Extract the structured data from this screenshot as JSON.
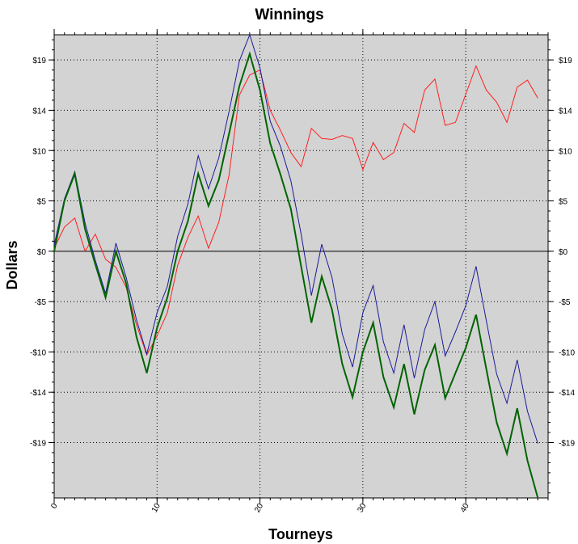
{
  "chart_data": {
    "type": "line",
    "title": "Winnings",
    "xlabel": "Tourneys",
    "ylabel": "Dollars",
    "xlim": [
      0,
      48
    ],
    "ylim": [
      -24.5,
      21.5
    ],
    "x_ticks": [
      0,
      10,
      20,
      30,
      40
    ],
    "x_tick_labels": [
      "0",
      "10",
      "20",
      "30",
      "40"
    ],
    "y_ticks": [
      19,
      14,
      10,
      5,
      0,
      -5,
      -10,
      -14,
      -19
    ],
    "y_tick_labels": [
      "$19",
      "$14",
      "$10",
      "$5",
      "$0",
      "-$5",
      "-$10",
      "-$14",
      "-$19"
    ],
    "grid": true,
    "legend": "none",
    "x": [
      0,
      1,
      2,
      3,
      4,
      5,
      6,
      7,
      8,
      9,
      10,
      11,
      12,
      13,
      14,
      15,
      16,
      17,
      18,
      19,
      20,
      21,
      22,
      23,
      24,
      25,
      26,
      27,
      28,
      29,
      30,
      31,
      32,
      33,
      34,
      35,
      36,
      37,
      38,
      39,
      40,
      41,
      42,
      43,
      44,
      45,
      46,
      47
    ],
    "series": [
      {
        "color": "#ff2020",
        "stroke_width": 1,
        "values": [
          0.3,
          2.4,
          3.3,
          0,
          1.7,
          -0.8,
          -1.6,
          -3.6,
          -7.3,
          -10.3,
          -8.4,
          -6.1,
          -1.4,
          1.4,
          3.5,
          0.3,
          2.9,
          7.6,
          15.5,
          17.5,
          18,
          14,
          12,
          9.8,
          8.4,
          12.2,
          11.2,
          11.1,
          11.5,
          11.2,
          8.1,
          10.8,
          9.1,
          9.8,
          12.7,
          11.8,
          16,
          17.1,
          12.5,
          12.8,
          15.6,
          18.4,
          16,
          14.8,
          12.8,
          16.3,
          17,
          15.2
        ]
      },
      {
        "color": "#1a1a99",
        "stroke_width": 1,
        "values": [
          0.6,
          5.2,
          7.9,
          2.8,
          -0.9,
          -4.2,
          0.8,
          -2.6,
          -6.8,
          -10.2,
          -6.1,
          -3.5,
          1.5,
          4.7,
          9.5,
          6.2,
          9.3,
          13.9,
          18.9,
          21.7,
          18.2,
          12.9,
          10.4,
          7,
          1.7,
          -4.4,
          0.7,
          -2.6,
          -8.2,
          -11.5,
          -6.1,
          -3.4,
          -9,
          -12.1,
          -7.3,
          -12.6,
          -7.8,
          -5,
          -10.4,
          -8,
          -5.4,
          -1.5,
          -6.9,
          -12.2,
          -15.1,
          -10.8,
          -15.9,
          -19.1
        ]
      },
      {
        "color": "#006400",
        "stroke_width": 2,
        "values": [
          0,
          5,
          7.7,
          2.2,
          -1.3,
          -4.6,
          0,
          -3.2,
          -8.5,
          -12.1,
          -7.6,
          -4.6,
          0,
          3,
          7.7,
          4.5,
          7.1,
          11.7,
          16.4,
          19.6,
          16,
          10.7,
          7.6,
          4.2,
          -1.5,
          -7.1,
          -2.5,
          -5.8,
          -11.2,
          -14.5,
          -10,
          -7.1,
          -12.5,
          -15.5,
          -11.2,
          -16.2,
          -11.8,
          -9.3,
          -14.6,
          -12.1,
          -9.6,
          -6.3,
          -11.7,
          -17,
          -20.1,
          -15.6,
          -20.8,
          -24.5
        ]
      }
    ]
  }
}
